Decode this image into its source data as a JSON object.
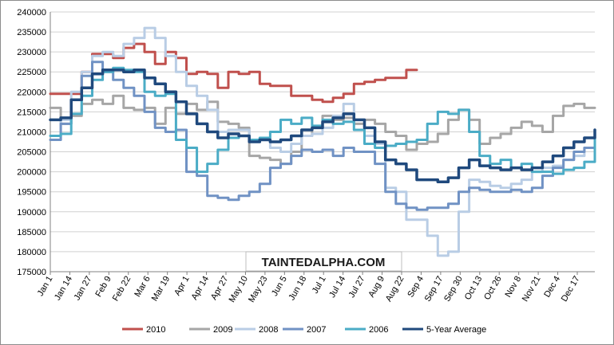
{
  "chart_data": {
    "type": "line",
    "title": "",
    "xlabel": "",
    "ylabel": "",
    "ylim": [
      175000,
      240000
    ],
    "yticks": [
      175000,
      180000,
      185000,
      190000,
      195000,
      200000,
      205000,
      210000,
      215000,
      220000,
      225000,
      230000,
      235000,
      240000
    ],
    "x_tick_labels": [
      "Jan 1",
      "Jan 14",
      "Jan 27",
      "Feb 9",
      "Feb 22",
      "Mar 6",
      "Mar 19",
      "Apr 1",
      "Apr 14",
      "Apr 27",
      "May 10",
      "May 23",
      "Jun 5",
      "Jun 18",
      "Jul 1",
      "Jul 14",
      "Jul 27",
      "Aug 9",
      "Aug 22",
      "Sep 4",
      "Sep 17",
      "Sep 30",
      "Oct 13",
      "Oct 26",
      "Nov 8",
      "Nov 21",
      "Dec 4",
      "Dec 17"
    ],
    "x_unit": "week of year (1-53)",
    "legend_position": "bottom",
    "grid": "horizontal",
    "watermark": "TAINTEDALPHA.COM",
    "series": [
      {
        "name": "2010",
        "color": "#c0504d",
        "width": 3,
        "points": [
          [
            1,
            219500
          ],
          [
            3,
            219500
          ],
          [
            4,
            225000
          ],
          [
            5,
            229500
          ],
          [
            6,
            229500
          ],
          [
            7,
            228500
          ],
          [
            8,
            231000
          ],
          [
            9,
            232000
          ],
          [
            10,
            230000
          ],
          [
            11,
            227000
          ],
          [
            12,
            230000
          ],
          [
            13,
            228500
          ],
          [
            14,
            224500
          ],
          [
            15,
            225000
          ],
          [
            16,
            224500
          ],
          [
            17,
            221000
          ],
          [
            18,
            225000
          ],
          [
            19,
            224500
          ],
          [
            20,
            225000
          ],
          [
            21,
            222000
          ],
          [
            22,
            221500
          ],
          [
            23,
            221500
          ],
          [
            24,
            219000
          ],
          [
            25,
            219000
          ],
          [
            26,
            218000
          ],
          [
            27,
            217500
          ],
          [
            28,
            218500
          ],
          [
            29,
            219500
          ],
          [
            30,
            222000
          ],
          [
            31,
            222500
          ],
          [
            32,
            223000
          ],
          [
            33,
            223500
          ],
          [
            34,
            223500
          ],
          [
            35,
            225500
          ],
          [
            36,
            225500
          ]
        ]
      },
      {
        "name": "2009",
        "color": "#a6a6a6",
        "width": 3,
        "points": [
          [
            1,
            216000
          ],
          [
            2,
            212000
          ],
          [
            3,
            214000
          ],
          [
            4,
            217000
          ],
          [
            5,
            218000
          ],
          [
            6,
            217000
          ],
          [
            7,
            219000
          ],
          [
            8,
            216000
          ],
          [
            9,
            215500
          ],
          [
            10,
            216000
          ],
          [
            11,
            212000
          ],
          [
            12,
            216000
          ],
          [
            13,
            214500
          ],
          [
            14,
            217000
          ],
          [
            15,
            215500
          ],
          [
            16,
            217500
          ],
          [
            17,
            212500
          ],
          [
            18,
            212000
          ],
          [
            19,
            211000
          ],
          [
            20,
            204000
          ],
          [
            21,
            203500
          ],
          [
            22,
            203000
          ],
          [
            23,
            202000
          ],
          [
            24,
            205000
          ],
          [
            25,
            209000
          ],
          [
            26,
            211000
          ],
          [
            27,
            214000
          ],
          [
            28,
            213000
          ],
          [
            29,
            213500
          ],
          [
            30,
            212000
          ],
          [
            31,
            213000
          ],
          [
            32,
            212000
          ],
          [
            33,
            210000
          ],
          [
            34,
            209000
          ],
          [
            35,
            205500
          ],
          [
            36,
            207000
          ],
          [
            37,
            207500
          ],
          [
            38,
            209500
          ],
          [
            39,
            213000
          ],
          [
            40,
            215500
          ],
          [
            41,
            213000
          ],
          [
            42,
            207000
          ],
          [
            43,
            208500
          ],
          [
            44,
            209500
          ],
          [
            45,
            211000
          ],
          [
            46,
            212500
          ],
          [
            47,
            211500
          ],
          [
            48,
            210000
          ],
          [
            49,
            214000
          ],
          [
            50,
            216500
          ],
          [
            51,
            217000
          ],
          [
            52,
            216000
          ],
          [
            53,
            216000
          ]
        ]
      },
      {
        "name": "2008",
        "color": "#b9cde5",
        "width": 3,
        "points": [
          [
            1,
            208000
          ],
          [
            2,
            213000
          ],
          [
            3,
            220000
          ],
          [
            4,
            225000
          ],
          [
            5,
            229000
          ],
          [
            6,
            230000
          ],
          [
            7,
            229000
          ],
          [
            8,
            232000
          ],
          [
            9,
            233500
          ],
          [
            10,
            236000
          ],
          [
            11,
            233500
          ],
          [
            12,
            229000
          ],
          [
            13,
            225000
          ],
          [
            14,
            221500
          ],
          [
            15,
            219000
          ],
          [
            16,
            215500
          ],
          [
            17,
            210000
          ],
          [
            18,
            210500
          ],
          [
            19,
            210500
          ],
          [
            20,
            208000
          ],
          [
            21,
            208000
          ],
          [
            22,
            206000
          ],
          [
            23,
            205000
          ],
          [
            24,
            207000
          ],
          [
            25,
            209000
          ],
          [
            26,
            209500
          ],
          [
            27,
            211000
          ],
          [
            28,
            214000
          ],
          [
            29,
            217000
          ],
          [
            30,
            213000
          ],
          [
            31,
            209000
          ],
          [
            32,
            207000
          ],
          [
            33,
            196000
          ],
          [
            34,
            195000
          ],
          [
            35,
            188000
          ],
          [
            36,
            188000
          ],
          [
            37,
            184000
          ],
          [
            38,
            179000
          ],
          [
            39,
            180000
          ],
          [
            40,
            190000
          ],
          [
            41,
            198000
          ],
          [
            42,
            197500
          ],
          [
            43,
            196500
          ],
          [
            44,
            196000
          ],
          [
            45,
            197000
          ],
          [
            46,
            198000
          ],
          [
            47,
            200000
          ],
          [
            48,
            201000
          ],
          [
            49,
            201500
          ],
          [
            50,
            203000
          ],
          [
            51,
            204000
          ],
          [
            52,
            206000
          ],
          [
            53,
            210000
          ]
        ]
      },
      {
        "name": "2007",
        "color": "#7092c4",
        "width": 3,
        "points": [
          [
            1,
            208000
          ],
          [
            2,
            212000
          ],
          [
            3,
            218000
          ],
          [
            4,
            224000
          ],
          [
            5,
            227500
          ],
          [
            6,
            225000
          ],
          [
            7,
            223000
          ],
          [
            8,
            221000
          ],
          [
            9,
            219000
          ],
          [
            10,
            215000
          ],
          [
            11,
            211000
          ],
          [
            12,
            210000
          ],
          [
            13,
            210500
          ],
          [
            14,
            200000
          ],
          [
            15,
            199000
          ],
          [
            16,
            194000
          ],
          [
            17,
            193500
          ],
          [
            18,
            193000
          ],
          [
            19,
            194000
          ],
          [
            20,
            195000
          ],
          [
            21,
            197000
          ],
          [
            22,
            201000
          ],
          [
            23,
            202000
          ],
          [
            24,
            204000
          ],
          [
            25,
            205500
          ],
          [
            26,
            205000
          ],
          [
            27,
            205500
          ],
          [
            28,
            204000
          ],
          [
            29,
            206000
          ],
          [
            30,
            205000
          ],
          [
            31,
            205000
          ],
          [
            32,
            202000
          ],
          [
            33,
            195000
          ],
          [
            34,
            192000
          ],
          [
            35,
            191000
          ],
          [
            36,
            190500
          ],
          [
            37,
            191000
          ],
          [
            38,
            191000
          ],
          [
            39,
            192000
          ],
          [
            40,
            195000
          ],
          [
            41,
            196000
          ],
          [
            42,
            195500
          ],
          [
            43,
            195000
          ],
          [
            44,
            195000
          ],
          [
            45,
            195500
          ],
          [
            46,
            195000
          ],
          [
            47,
            196000
          ],
          [
            48,
            199000
          ],
          [
            49,
            201000
          ],
          [
            50,
            203000
          ],
          [
            51,
            205000
          ],
          [
            52,
            206000
          ],
          [
            53,
            209000
          ]
        ]
      },
      {
        "name": "2006",
        "color": "#4bacc6",
        "width": 3,
        "points": [
          [
            1,
            209000
          ],
          [
            2,
            209500
          ],
          [
            3,
            214500
          ],
          [
            4,
            219000
          ],
          [
            5,
            223000
          ],
          [
            6,
            225000
          ],
          [
            7,
            226000
          ],
          [
            8,
            225500
          ],
          [
            9,
            225000
          ],
          [
            10,
            220000
          ],
          [
            11,
            219000
          ],
          [
            12,
            219500
          ],
          [
            13,
            208000
          ],
          [
            14,
            206000
          ],
          [
            15,
            200000
          ],
          [
            16,
            202000
          ],
          [
            17,
            205500
          ],
          [
            18,
            208500
          ],
          [
            19,
            209000
          ],
          [
            20,
            208000
          ],
          [
            21,
            208500
          ],
          [
            22,
            210000
          ],
          [
            23,
            213000
          ],
          [
            24,
            212000
          ],
          [
            25,
            213500
          ],
          [
            26,
            211500
          ],
          [
            27,
            213000
          ],
          [
            28,
            212000
          ],
          [
            29,
            212500
          ],
          [
            30,
            210500
          ],
          [
            31,
            207000
          ],
          [
            32,
            206000
          ],
          [
            33,
            206500
          ],
          [
            34,
            207000
          ],
          [
            35,
            207500
          ],
          [
            36,
            208000
          ],
          [
            37,
            212000
          ],
          [
            38,
            215000
          ],
          [
            39,
            214500
          ],
          [
            40,
            215500
          ],
          [
            41,
            210000
          ],
          [
            42,
            204000
          ],
          [
            43,
            202000
          ],
          [
            44,
            203000
          ],
          [
            45,
            201000
          ],
          [
            46,
            202000
          ],
          [
            47,
            200000
          ],
          [
            48,
            200000
          ],
          [
            49,
            199500
          ],
          [
            50,
            200500
          ],
          [
            51,
            201000
          ],
          [
            52,
            202500
          ],
          [
            53,
            209000
          ]
        ]
      },
      {
        "name": "5-Year Average",
        "color": "#1f497d",
        "width": 3.5,
        "points": [
          [
            1,
            213000
          ],
          [
            2,
            213500
          ],
          [
            3,
            218000
          ],
          [
            4,
            221000
          ],
          [
            5,
            224500
          ],
          [
            6,
            225500
          ],
          [
            7,
            225500
          ],
          [
            8,
            225000
          ],
          [
            9,
            225500
          ],
          [
            10,
            223500
          ],
          [
            11,
            222000
          ],
          [
            12,
            220000
          ],
          [
            13,
            217500
          ],
          [
            14,
            214500
          ],
          [
            15,
            212000
          ],
          [
            16,
            210000
          ],
          [
            17,
            208500
          ],
          [
            18,
            209500
          ],
          [
            19,
            209000
          ],
          [
            20,
            207500
          ],
          [
            21,
            208000
          ],
          [
            22,
            207500
          ],
          [
            23,
            208000
          ],
          [
            24,
            209000
          ],
          [
            25,
            210500
          ],
          [
            26,
            211000
          ],
          [
            27,
            212500
          ],
          [
            28,
            213500
          ],
          [
            29,
            214500
          ],
          [
            30,
            213000
          ],
          [
            31,
            211000
          ],
          [
            32,
            207500
          ],
          [
            33,
            203000
          ],
          [
            34,
            202000
          ],
          [
            35,
            200500
          ],
          [
            36,
            198000
          ],
          [
            37,
            198000
          ],
          [
            38,
            197500
          ],
          [
            39,
            198500
          ],
          [
            40,
            201000
          ],
          [
            41,
            203000
          ],
          [
            42,
            201500
          ],
          [
            43,
            201000
          ],
          [
            44,
            200500
          ],
          [
            45,
            201000
          ],
          [
            46,
            200500
          ],
          [
            47,
            201000
          ],
          [
            48,
            202500
          ],
          [
            49,
            204000
          ],
          [
            50,
            206000
          ],
          [
            51,
            207500
          ],
          [
            52,
            208500
          ],
          [
            53,
            210500
          ]
        ]
      }
    ]
  }
}
